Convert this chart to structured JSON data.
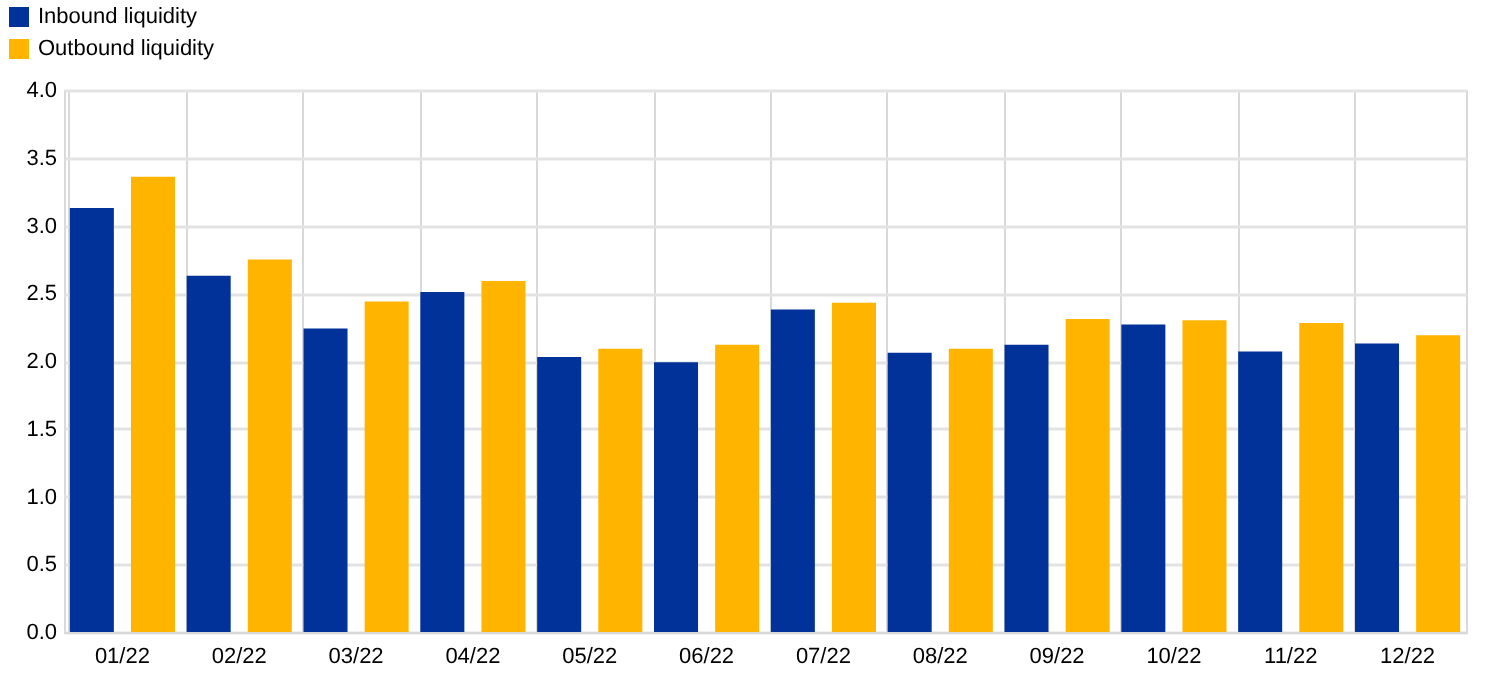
{
  "chart_data": {
    "type": "bar",
    "categories": [
      "01/22",
      "02/22",
      "03/22",
      "04/22",
      "05/22",
      "06/22",
      "07/22",
      "08/22",
      "09/22",
      "10/22",
      "11/22",
      "12/22"
    ],
    "series": [
      {
        "name": "Inbound liquidity",
        "color": "#003299",
        "values": [
          3.13,
          2.63,
          2.24,
          2.51,
          2.03,
          1.99,
          2.38,
          2.06,
          2.12,
          2.27,
          2.07,
          2.13
        ]
      },
      {
        "name": "Outbound liquidity",
        "color": "#ffb400",
        "values": [
          3.36,
          2.75,
          2.44,
          2.59,
          2.09,
          2.12,
          2.43,
          2.09,
          2.31,
          2.3,
          2.28,
          2.19
        ]
      }
    ],
    "ylim": [
      0,
      4
    ],
    "yticks": [
      {
        "value": 0,
        "label": "0.0"
      },
      0.5,
      {
        "value": 1,
        "label": "1.0"
      },
      1.5,
      {
        "value": 2,
        "label": "2.0"
      },
      2.5,
      {
        "value": 3,
        "label": "3.0"
      },
      3.5,
      {
        "value": 4,
        "label": "4.0"
      }
    ],
    "grid": true,
    "legend": "top left"
  }
}
